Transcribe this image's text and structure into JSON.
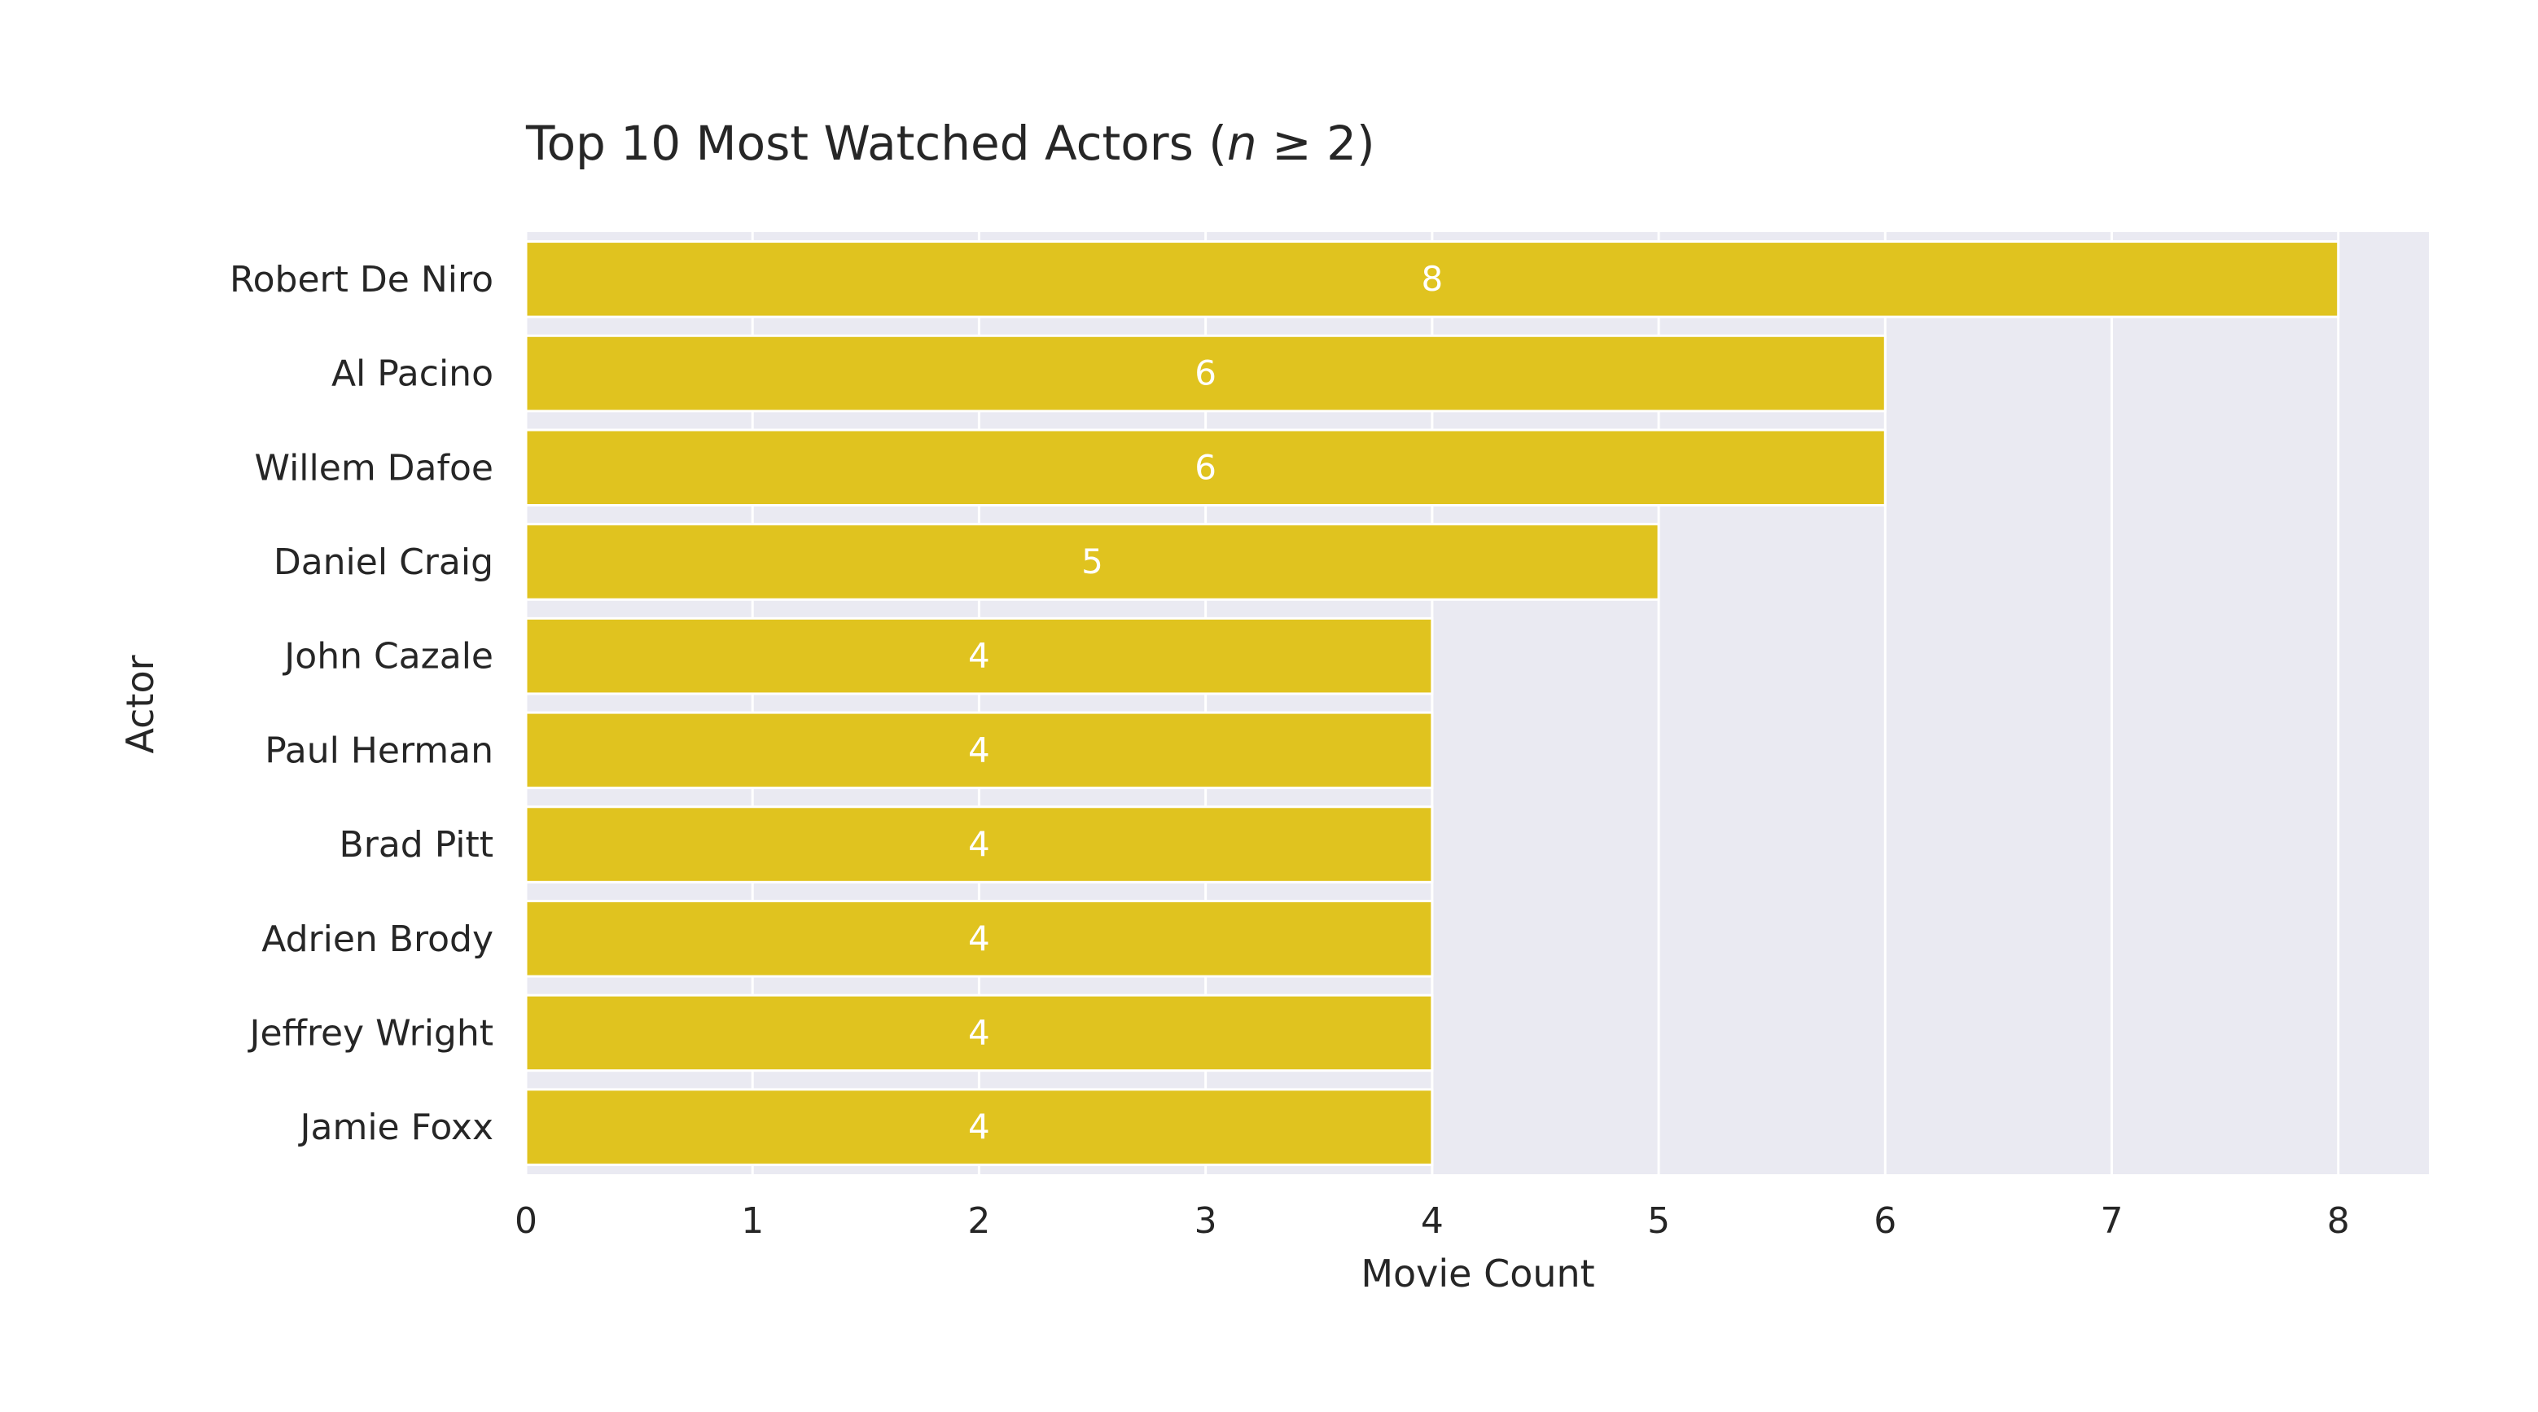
{
  "chart_data": {
    "type": "bar",
    "orientation": "horizontal",
    "title_prefix": "Top 10 Most Watched Actors (",
    "title_var": "n",
    "title_suffix": " ≥ 2)",
    "xlabel": "Movie Count",
    "ylabel": "Actor",
    "categories": [
      "Robert De Niro",
      "Al Pacino",
      "Willem Dafoe",
      "Daniel Craig",
      "John Cazale",
      "Paul Herman",
      "Brad Pitt",
      "Adrien Brody",
      "Jeffrey Wright",
      "Jamie Foxx"
    ],
    "values": [
      8,
      6,
      6,
      5,
      4,
      4,
      4,
      4,
      4,
      4
    ],
    "data_labels": [
      "8",
      "6",
      "6",
      "5",
      "4",
      "4",
      "4",
      "4",
      "4",
      "4"
    ],
    "xlim": [
      0,
      8.4
    ],
    "xticks": [
      0,
      1,
      2,
      3,
      4,
      5,
      6,
      7,
      8
    ],
    "grid": true,
    "legend": "none",
    "colors": {
      "bar": "#E0C31F",
      "plot_background": "#EAEAF2",
      "grid": "#FFFFFF",
      "text": "#262626",
      "bar_label": "#FFFFFF"
    }
  }
}
